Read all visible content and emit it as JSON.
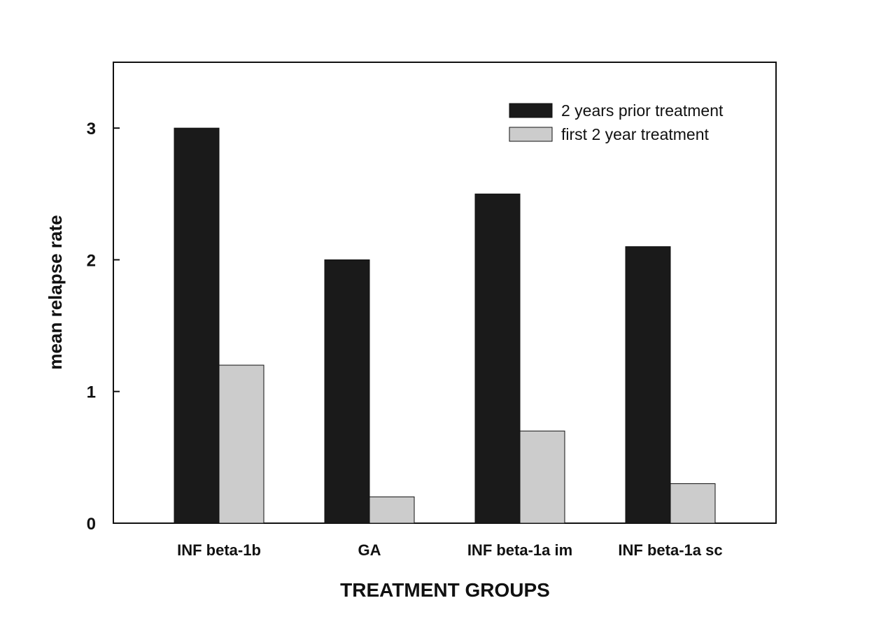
{
  "chart_data": {
    "type": "bar",
    "title": "",
    "xlabel": "TREATMENT GROUPS",
    "ylabel": "mean relapse rate",
    "categories": [
      "INF beta-1b",
      "GA",
      "INF beta-1a im",
      "INF beta-1a sc"
    ],
    "series": [
      {
        "name": "2 years prior treatment",
        "values": [
          3.0,
          2.0,
          2.5,
          2.1
        ],
        "color": "#1a1a1a"
      },
      {
        "name": "first 2 year treatment",
        "values": [
          1.2,
          0.2,
          0.7,
          0.3
        ],
        "color": "#cccccc"
      }
    ],
    "ylim": [
      0,
      3.5
    ],
    "yticks": [
      0,
      1,
      2,
      3
    ],
    "ytick_labels": [
      "0",
      "1",
      "2",
      "3"
    ],
    "grid": false,
    "legend_position": "top-right"
  }
}
